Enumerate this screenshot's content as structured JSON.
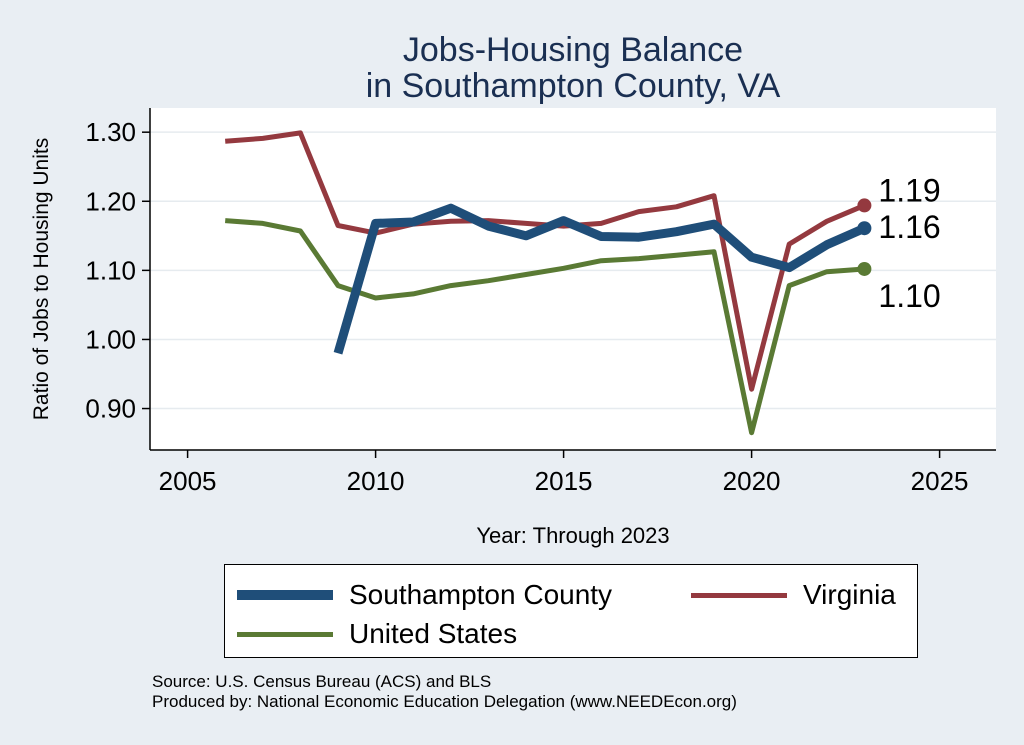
{
  "title_line1": "Jobs-Housing Balance",
  "title_line2": "in Southampton County, VA",
  "source_line1": "Source: U.S. Census Bureau (ACS) and BLS",
  "source_line2": "Produced by: National Economic Education Delegation (www.NEEDEcon.org)",
  "chart_data": {
    "type": "line",
    "title": "Jobs-Housing Balance in Southampton County, VA",
    "xlabel": "Year: Through 2023",
    "ylabel": "Ratio of Jobs to Housing Units",
    "xlim": [
      2004,
      2026.5
    ],
    "ylim": [
      0.84,
      1.335
    ],
    "xticks": [
      2005,
      2010,
      2015,
      2020,
      2025
    ],
    "yticks": [
      0.9,
      1.0,
      1.1,
      1.2,
      1.3
    ],
    "ytick_labels": [
      "0.90",
      "1.00",
      "1.10",
      "1.20",
      "1.30"
    ],
    "grid": true,
    "legend_position": "bottom",
    "series": [
      {
        "name": "Southampton County",
        "color": "#1f4e79",
        "end_label": "1.16",
        "x": [
          2009,
          2010,
          2011,
          2012,
          2013,
          2014,
          2015,
          2016,
          2017,
          2018,
          2019,
          2020,
          2021,
          2022,
          2023
        ],
        "values": [
          0.98,
          1.168,
          1.17,
          1.19,
          1.164,
          1.15,
          1.172,
          1.149,
          1.148,
          1.156,
          1.167,
          1.119,
          1.104,
          1.137,
          1.161
        ]
      },
      {
        "name": "Virginia",
        "color": "#94393f",
        "end_label": "1.19",
        "x": [
          2006,
          2007,
          2008,
          2009,
          2010,
          2011,
          2012,
          2013,
          2014,
          2015,
          2016,
          2017,
          2018,
          2019,
          2020,
          2021,
          2022,
          2023
        ],
        "values": [
          1.287,
          1.291,
          1.299,
          1.165,
          1.154,
          1.167,
          1.171,
          1.172,
          1.168,
          1.164,
          1.168,
          1.185,
          1.192,
          1.208,
          0.928,
          1.138,
          1.171,
          1.194
        ]
      },
      {
        "name": "United States",
        "color": "#5a7a34",
        "end_label": "1.10",
        "x": [
          2006,
          2007,
          2008,
          2009,
          2010,
          2011,
          2012,
          2013,
          2014,
          2015,
          2016,
          2017,
          2018,
          2019,
          2020,
          2021,
          2022,
          2023
        ],
        "values": [
          1.172,
          1.168,
          1.157,
          1.078,
          1.06,
          1.066,
          1.078,
          1.085,
          1.094,
          1.103,
          1.114,
          1.117,
          1.122,
          1.127,
          0.865,
          1.078,
          1.098,
          1.102
        ]
      }
    ]
  }
}
